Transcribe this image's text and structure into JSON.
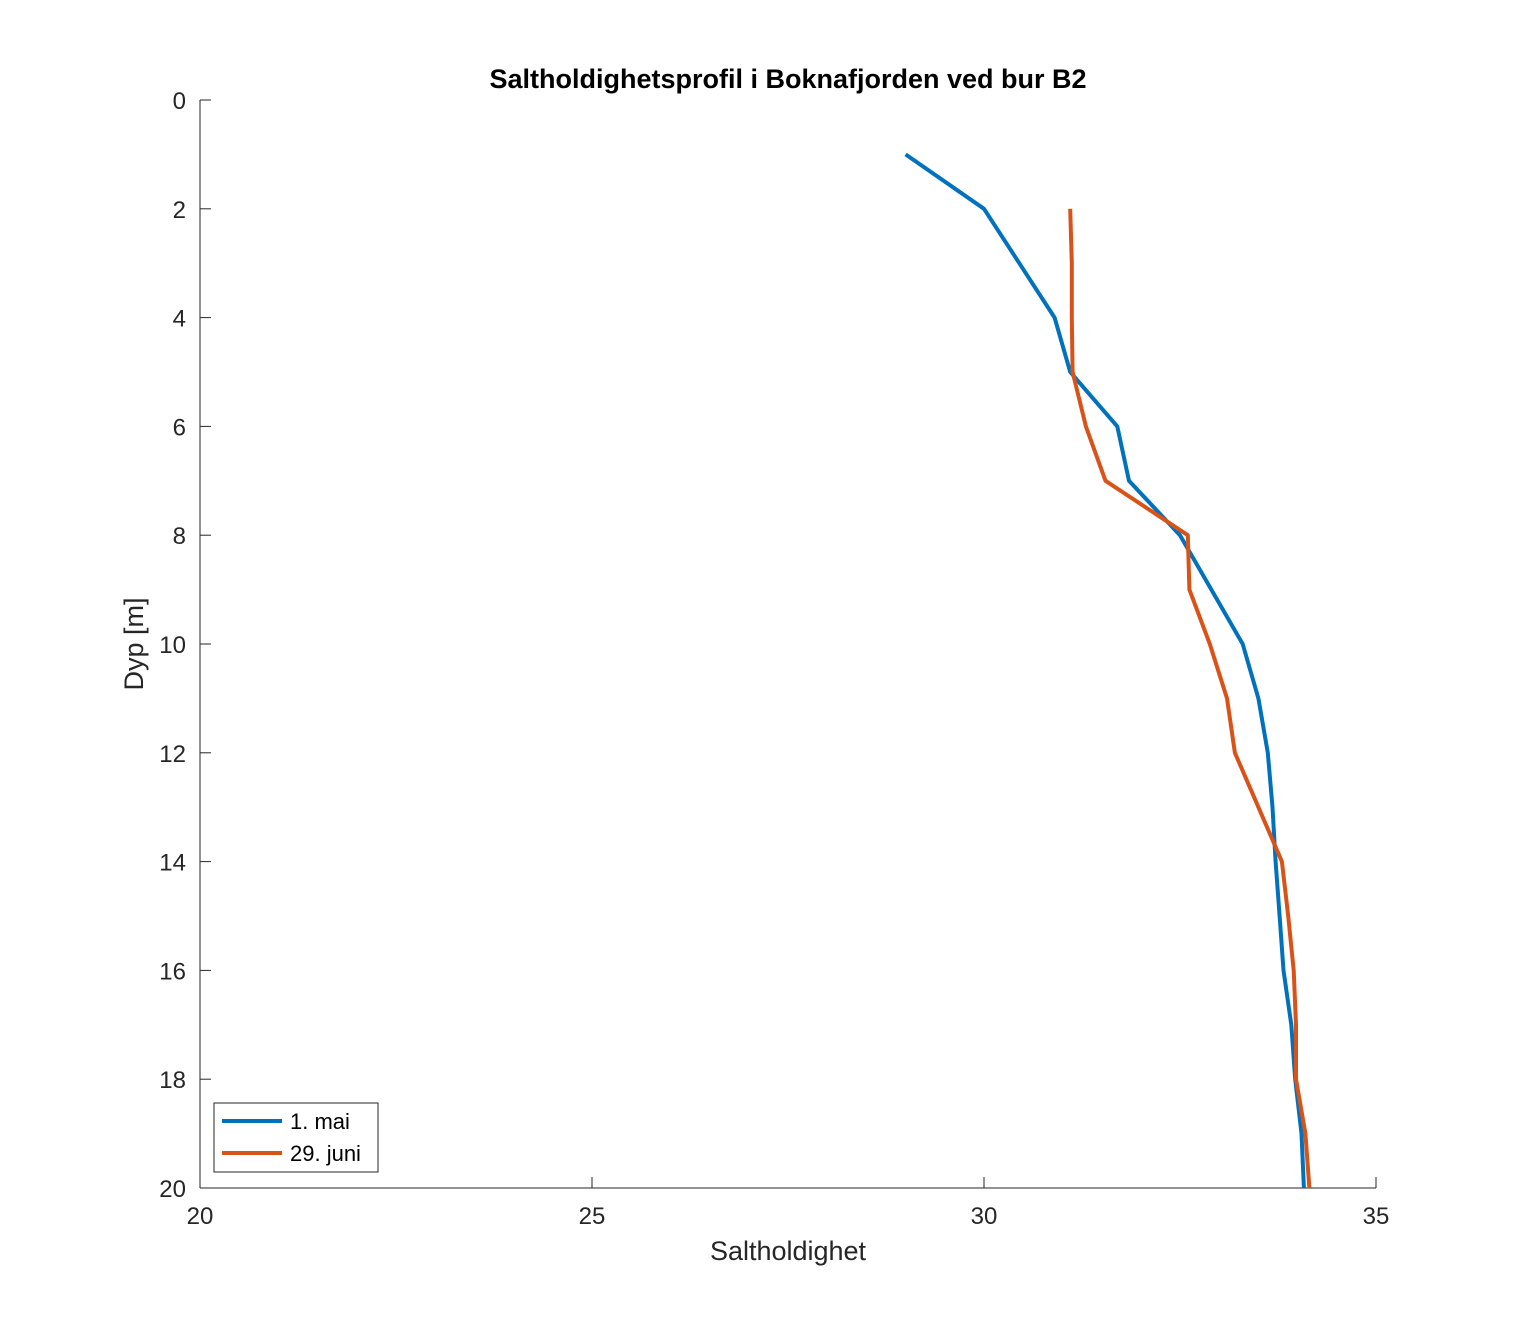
{
  "chart_data": {
    "type": "line",
    "title": "Saltholdighetsprofil i Boknafjorden ved bur B2",
    "xlabel": "Saltholdighet",
    "ylabel": "Dyp [m]",
    "xlim": [
      20,
      35
    ],
    "ylim": [
      0,
      20
    ],
    "y_reversed": true,
    "x_ticks": [
      "20",
      "25",
      "30",
      "35"
    ],
    "y_ticks": [
      "0",
      "2",
      "4",
      "6",
      "8",
      "10",
      "12",
      "14",
      "16",
      "18",
      "20"
    ],
    "grid": false,
    "legend_position": "bottom-left",
    "series": [
      {
        "name": "1. mai",
        "color": "#0072BD",
        "points": [
          [
            29.0,
            1
          ],
          [
            30.0,
            2
          ],
          [
            30.9,
            4
          ],
          [
            31.1,
            5
          ],
          [
            31.7,
            6
          ],
          [
            31.85,
            7
          ],
          [
            32.5,
            8
          ],
          [
            33.3,
            10
          ],
          [
            33.5,
            11
          ],
          [
            33.62,
            12
          ],
          [
            33.68,
            13
          ],
          [
            33.72,
            14
          ],
          [
            33.77,
            15
          ],
          [
            33.82,
            16
          ],
          [
            33.92,
            17
          ],
          [
            33.97,
            18
          ],
          [
            34.05,
            19
          ],
          [
            34.08,
            20
          ]
        ]
      },
      {
        "name": "29. juni",
        "color": "#D95319",
        "points": [
          [
            31.1,
            2
          ],
          [
            31.12,
            3
          ],
          [
            31.12,
            4
          ],
          [
            31.13,
            5
          ],
          [
            31.3,
            6
          ],
          [
            31.55,
            7
          ],
          [
            32.6,
            8
          ],
          [
            32.62,
            9
          ],
          [
            32.88,
            10
          ],
          [
            33.1,
            11
          ],
          [
            33.2,
            12
          ],
          [
            33.5,
            13
          ],
          [
            33.8,
            14
          ],
          [
            33.88,
            15
          ],
          [
            33.95,
            16
          ],
          [
            33.98,
            17
          ],
          [
            33.98,
            18
          ],
          [
            34.1,
            19
          ],
          [
            34.15,
            20
          ]
        ]
      }
    ]
  }
}
